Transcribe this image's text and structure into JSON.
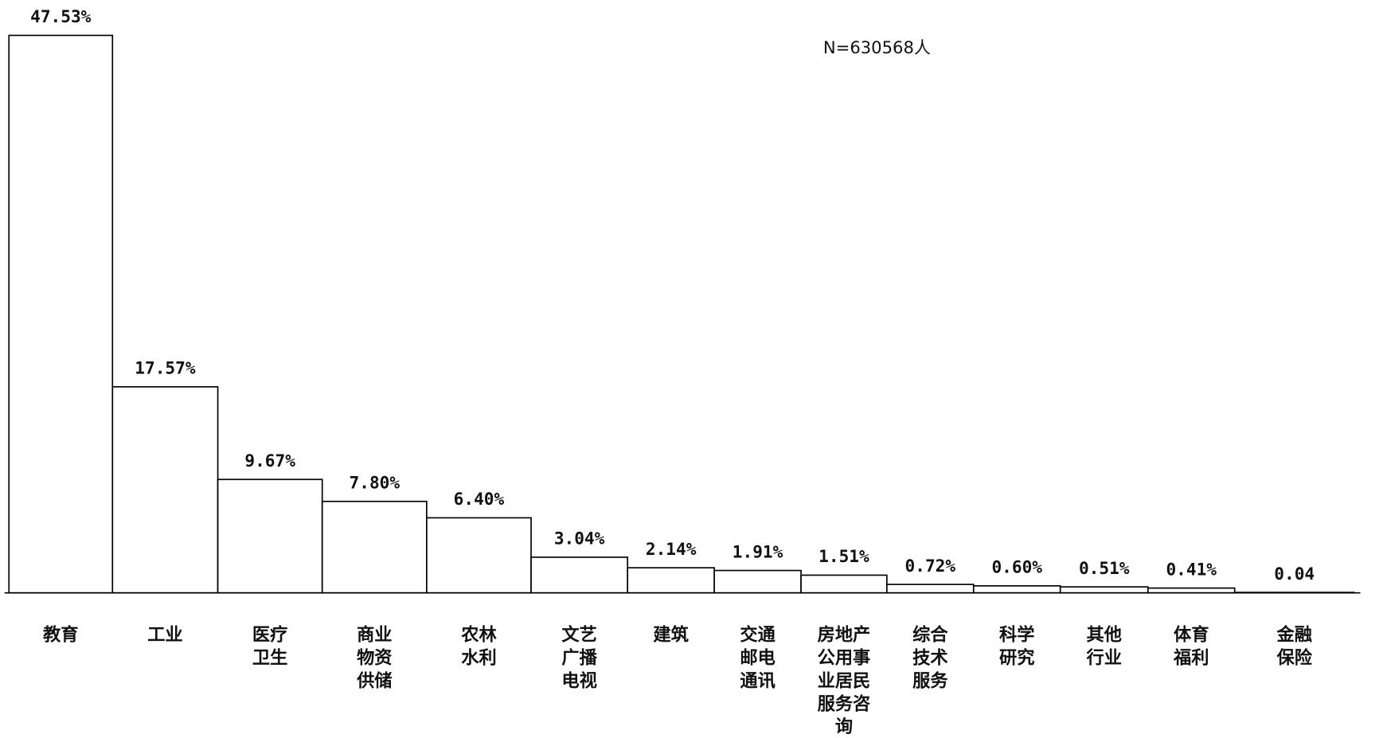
{
  "chart_data": {
    "type": "bar",
    "annotation": "N=630568人",
    "categories": [
      [
        "教育"
      ],
      [
        "工业"
      ],
      [
        "医疗",
        "卫生"
      ],
      [
        "商业",
        "物资",
        "供储"
      ],
      [
        "农林",
        "水利"
      ],
      [
        "文艺",
        "广播",
        "电视"
      ],
      [
        "建筑"
      ],
      [
        "交通",
        "邮电",
        "通讯"
      ],
      [
        "房地产",
        "公用事",
        "业居民",
        "服务咨",
        "询"
      ],
      [
        "综合",
        "技术",
        "服务"
      ],
      [
        "科学",
        "研究"
      ],
      [
        "其他",
        "行业"
      ],
      [
        "体育",
        "福利"
      ],
      [
        "金融",
        "保险"
      ]
    ],
    "values": [
      47.53,
      17.57,
      9.67,
      7.8,
      6.4,
      3.04,
      2.14,
      1.91,
      1.51,
      0.72,
      0.6,
      0.51,
      0.41,
      0.04
    ],
    "value_labels": [
      "47.53%",
      "17.57%",
      "9.67%",
      "7.80%",
      "6.40%",
      "3.04%",
      "2.14%",
      "1.91%",
      "1.51%",
      "0.72%",
      "0.60%",
      "0.51%",
      "0.41%",
      "0.04"
    ],
    "color": "#ffffff"
  }
}
